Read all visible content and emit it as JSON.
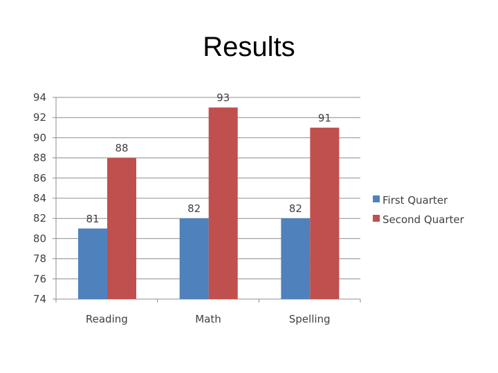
{
  "page": {
    "title": "Results"
  },
  "chart_data": {
    "type": "bar",
    "title": "",
    "xlabel": "",
    "ylabel": "",
    "categories": [
      "Reading",
      "Math",
      "Spelling"
    ],
    "series": [
      {
        "name": "First Quarter",
        "values": [
          81,
          82,
          82
        ],
        "color": "#4F81BD"
      },
      {
        "name": "Second Quarter",
        "values": [
          88,
          93,
          91
        ],
        "color": "#C0504D"
      }
    ],
    "ylim": [
      74,
      94
    ],
    "yticks": [
      94,
      92,
      90,
      88,
      86,
      84,
      82,
      80,
      78,
      76,
      74
    ],
    "grid": true,
    "legend_position": "right",
    "data_labels": true
  }
}
